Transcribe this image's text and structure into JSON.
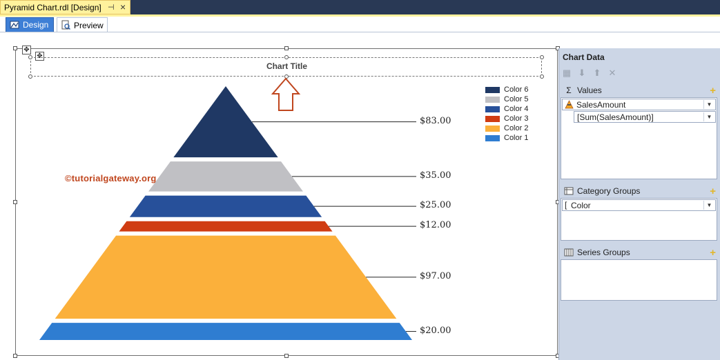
{
  "document_tab": {
    "title": "Pyramid Chart.rdl [Design]",
    "pin_glyph": "⊣",
    "close_glyph": "×"
  },
  "view_tabs": [
    {
      "label": "Design",
      "icon": "design-ruler-icon",
      "active": true
    },
    {
      "label": "Preview",
      "icon": "preview-icon",
      "active": false
    }
  ],
  "chart": {
    "title": "Chart Title",
    "watermark": "©tutorialgateway.org",
    "chart_data": {
      "type": "pyramid",
      "title": "Chart Title",
      "series": [
        {
          "name": "Color 6",
          "value": 83.0,
          "label": "$83.00",
          "color": "#1f3864"
        },
        {
          "name": "Color 5",
          "value": 35.0,
          "label": "$35.00",
          "color": "#c0c0c4"
        },
        {
          "name": "Color 4",
          "value": 25.0,
          "label": "$25.00",
          "color": "#27509a"
        },
        {
          "name": "Color 3",
          "value": 12.0,
          "label": "$12.00",
          "color": "#d03c12"
        },
        {
          "name": "Color 2",
          "value": 97.0,
          "label": "$97.00",
          "color": "#fbb03b"
        },
        {
          "name": "Color 1",
          "value": 20.0,
          "label": "$20.00",
          "color": "#2f7dd1"
        }
      ],
      "legend_position": "top-right"
    }
  },
  "chart_data_pane": {
    "title": "Chart Data",
    "toolbar": [
      "chart-properties-icon",
      "move-down-icon",
      "move-up-icon",
      "delete-icon"
    ],
    "values": {
      "label": "Values",
      "icon_glyph": "Σ",
      "field": "SalesAmount",
      "expression": "[Sum(SalesAmount)]"
    },
    "category_groups": {
      "label": "Category Groups",
      "field": "Color"
    },
    "series_groups": {
      "label": "Series Groups"
    }
  }
}
